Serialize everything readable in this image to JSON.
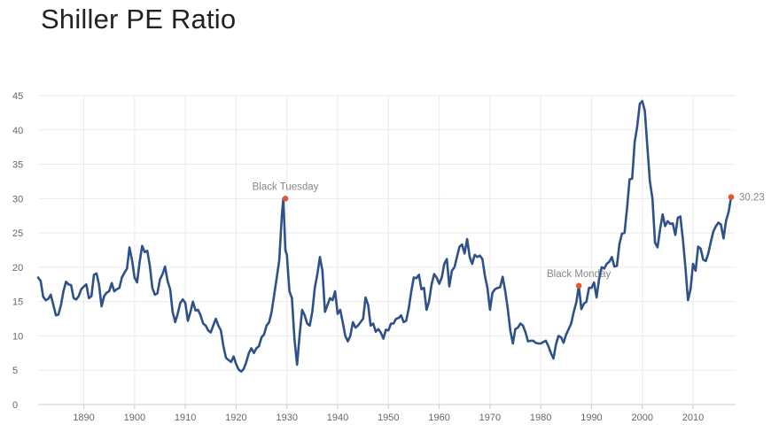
{
  "chart_data": {
    "type": "line",
    "title": "Shiller PE Ratio",
    "xlabel": "",
    "ylabel": "",
    "xlim": [
      1881,
      2017.5
    ],
    "ylim": [
      0,
      45
    ],
    "x_ticks": [
      1890,
      1900,
      1910,
      1920,
      1930,
      1940,
      1950,
      1960,
      1970,
      1980,
      1990,
      2000,
      2010
    ],
    "y_ticks": [
      0,
      5,
      10,
      15,
      20,
      25,
      30,
      35,
      40,
      45
    ],
    "grid": true,
    "legend": "none",
    "line_color": "#2e5189",
    "marker_color": "#e05a2b",
    "grid_color": "#ebebeb",
    "series": [
      {
        "x": [
          1881,
          1881.5,
          1882,
          1882.5,
          1883,
          1883.5,
          1884,
          1884.5,
          1885,
          1885.5,
          1886,
          1886.5,
          1887,
          1887.5,
          1888,
          1888.5,
          1889,
          1889.5,
          1890,
          1890.5,
          1891,
          1891.5,
          1892,
          1892.5,
          1893,
          1893.5,
          1894,
          1894.5,
          1895,
          1895.5,
          1896,
          1896.5,
          1897,
          1897.5,
          1898,
          1898.5,
          1899,
          1899.5,
          1900,
          1900.5,
          1901,
          1901.5,
          1902,
          1902.5,
          1903,
          1903.5,
          1904,
          1904.5,
          1905,
          1905.5,
          1906,
          1906.5,
          1907,
          1907.5,
          1908,
          1908.5,
          1909,
          1909.5,
          1910,
          1910.5,
          1911,
          1911.5,
          1912,
          1912.5,
          1913,
          1913.5,
          1914,
          1914.5,
          1915,
          1915.5,
          1916,
          1916.5,
          1917,
          1917.5,
          1918,
          1918.5,
          1919,
          1919.5,
          1920,
          1920.5,
          1921,
          1921.5,
          1922,
          1922.5,
          1923,
          1923.5,
          1924,
          1924.5,
          1925,
          1925.5,
          1926,
          1926.5,
          1927,
          1927.5,
          1928,
          1928.5,
          1929,
          1929.3,
          1929.7,
          1930,
          1930.5,
          1931,
          1931.5,
          1932,
          1932.5,
          1933,
          1933.5,
          1934,
          1934.5,
          1935,
          1935.5,
          1936,
          1936.5,
          1937,
          1937.5,
          1938,
          1938.5,
          1939,
          1939.5,
          1940,
          1940.5,
          1941,
          1941.5,
          1942,
          1942.5,
          1943,
          1943.5,
          1944,
          1944.5,
          1945,
          1945.5,
          1946,
          1946.5,
          1947,
          1947.5,
          1948,
          1948.5,
          1949,
          1949.5,
          1950,
          1950.5,
          1951,
          1951.5,
          1952,
          1952.5,
          1953,
          1953.5,
          1954,
          1954.5,
          1955,
          1955.5,
          1956,
          1956.5,
          1957,
          1957.5,
          1958,
          1958.5,
          1959,
          1959.5,
          1960,
          1960.5,
          1961,
          1961.5,
          1962,
          1962.5,
          1963,
          1963.5,
          1964,
          1964.5,
          1965,
          1965.5,
          1966,
          1966.5,
          1967,
          1967.5,
          1968,
          1968.5,
          1969,
          1969.5,
          1970,
          1970.5,
          1971,
          1971.5,
          1972,
          1972.5,
          1973,
          1973.5,
          1974,
          1974.5,
          1975,
          1975.5,
          1976,
          1976.5,
          1977,
          1977.5,
          1978,
          1978.5,
          1979,
          1979.5,
          1980,
          1980.5,
          1981,
          1981.5,
          1982,
          1982.5,
          1983,
          1983.5,
          1984,
          1984.5,
          1985,
          1985.5,
          1986,
          1986.5,
          1987,
          1987.5,
          1988,
          1988.5,
          1989,
          1989.5,
          1990,
          1990.5,
          1991,
          1991.5,
          1992,
          1992.5,
          1993,
          1993.5,
          1994,
          1994.5,
          1995,
          1995.5,
          1996,
          1996.5,
          1997,
          1997.5,
          1998,
          1998.5,
          1999,
          1999.5,
          2000,
          2000.5,
          2001,
          2001.5,
          2002,
          2002.5,
          2003,
          2003.5,
          2004,
          2004.5,
          2005,
          2005.5,
          2006,
          2006.5,
          2007,
          2007.5,
          2008,
          2008.5,
          2009,
          2009.5,
          2010,
          2010.5,
          2011,
          2011.5,
          2012,
          2012.5,
          2013,
          2013.5,
          2014,
          2014.5,
          2015,
          2015.5,
          2016,
          2016.5,
          2017,
          2017.5
        ],
        "values": [
          18.5,
          18.0,
          15.7,
          15.2,
          15.4,
          16.0,
          14.5,
          13.0,
          13.1,
          14.5,
          16.5,
          17.9,
          17.5,
          17.4,
          15.5,
          15.3,
          15.8,
          16.8,
          17.2,
          17.5,
          15.5,
          15.8,
          18.9,
          19.1,
          17.5,
          14.3,
          15.8,
          16.3,
          16.5,
          17.7,
          16.5,
          16.8,
          17.0,
          18.5,
          19.2,
          19.8,
          22.9,
          21.0,
          18.5,
          17.8,
          20.8,
          23.1,
          22.2,
          22.4,
          20.3,
          17.0,
          16.0,
          16.2,
          18.2,
          19.0,
          20.1,
          18.0,
          16.8,
          13.5,
          12.0,
          13.2,
          14.8,
          15.3,
          14.8,
          12.2,
          13.5,
          15.0,
          13.7,
          13.8,
          13.0,
          11.8,
          11.5,
          10.8,
          10.5,
          11.5,
          12.5,
          11.5,
          10.8,
          8.5,
          6.8,
          6.5,
          6.2,
          7.0,
          5.9,
          5.1,
          4.8,
          5.2,
          6.2,
          7.5,
          8.2,
          7.5,
          8.2,
          8.5,
          9.8,
          10.2,
          11.5,
          12.0,
          13.5,
          16.0,
          18.5,
          21.0,
          27.5,
          30.0,
          22.5,
          21.8,
          16.5,
          15.5,
          9.5,
          5.8,
          10.0,
          13.8,
          13.0,
          11.8,
          11.5,
          13.5,
          17.0,
          19.0,
          21.5,
          19.5,
          13.5,
          14.5,
          15.5,
          15.2,
          16.5,
          13.2,
          13.8,
          12.0,
          10.0,
          9.2,
          10.0,
          12.0,
          11.2,
          11.5,
          12.0,
          12.5,
          15.6,
          14.5,
          11.5,
          11.8,
          10.6,
          11.0,
          10.5,
          9.6,
          10.9,
          10.8,
          11.8,
          11.8,
          12.5,
          12.6,
          13.0,
          12.0,
          12.2,
          14.0,
          16.5,
          18.5,
          18.4,
          18.9,
          16.8,
          17.0,
          13.8,
          15.0,
          17.5,
          19.0,
          18.5,
          17.6,
          18.5,
          20.5,
          21.2,
          17.2,
          19.5,
          20.0,
          21.5,
          23.0,
          23.3,
          22.0,
          24.1,
          21.5,
          20.5,
          21.8,
          21.5,
          21.7,
          21.2,
          18.8,
          17.0,
          13.8,
          16.3,
          16.8,
          17.0,
          17.1,
          18.6,
          16.5,
          14.0,
          10.8,
          8.9,
          11.0,
          11.2,
          11.8,
          11.5,
          10.5,
          9.2,
          9.3,
          9.3,
          9.0,
          8.9,
          8.9,
          9.1,
          9.3,
          8.5,
          7.5,
          6.7,
          8.8,
          10.0,
          9.8,
          9.0,
          10.2,
          11.0,
          11.8,
          13.5,
          14.9,
          17.3,
          13.9,
          14.7,
          15.0,
          17.0,
          17.0,
          17.8,
          15.6,
          18.3,
          20.0,
          19.8,
          20.5,
          20.8,
          21.5,
          20.1,
          20.2,
          23.4,
          24.9,
          25.0,
          28.7,
          32.8,
          32.9,
          38.3,
          40.5,
          43.8,
          44.2,
          42.8,
          37.5,
          32.5,
          30.0,
          23.6,
          22.9,
          25.5,
          27.7,
          26.0,
          26.7,
          26.3,
          26.4,
          24.7,
          27.2,
          27.4,
          24.0,
          20.0,
          15.2,
          16.8,
          20.5,
          19.5,
          23.0,
          22.7,
          21.1,
          20.9,
          22.0,
          23.7,
          25.2,
          26.0,
          26.5,
          26.2,
          24.2,
          26.8,
          28.0,
          30.23
        ]
      }
    ],
    "annotations": [
      {
        "label": "Black Tuesday",
        "x": 1929.7,
        "y": 30.0
      },
      {
        "label": "Black Monday",
        "x": 1987.5,
        "y": 17.3
      },
      {
        "label": "30.23",
        "x": 2017.5,
        "y": 30.23
      }
    ]
  }
}
